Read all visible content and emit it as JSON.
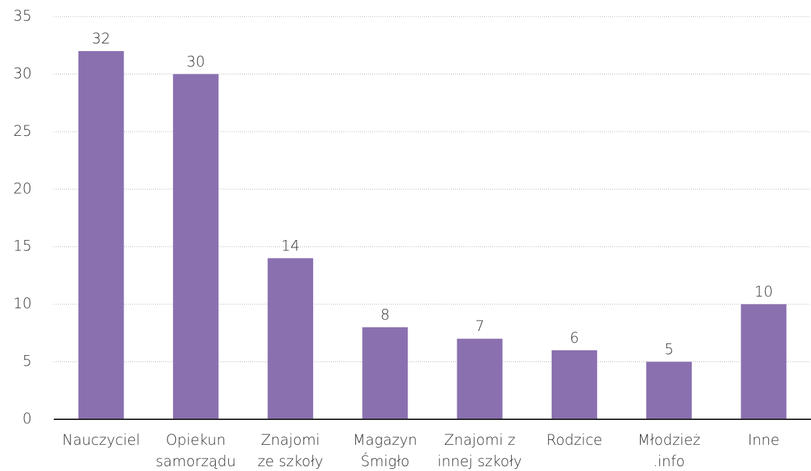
{
  "chart_data": {
    "type": "bar",
    "categories": [
      [
        "Nauczyciel"
      ],
      [
        "Opiekun",
        "samorządu"
      ],
      [
        "Znajomi",
        "ze szkoły"
      ],
      [
        "Magazyn",
        "Śmigło"
      ],
      [
        "Znajomi z",
        "innej szkoły"
      ],
      [
        "Rodzice"
      ],
      [
        "Młodzież",
        ".info"
      ],
      [
        "Inne"
      ]
    ],
    "values": [
      32,
      30,
      14,
      8,
      7,
      6,
      5,
      10
    ],
    "color": "#8b70b0",
    "ylim": [
      0,
      35
    ],
    "yticks": [
      0,
      5,
      10,
      15,
      20,
      25,
      30,
      35
    ],
    "grid": true
  }
}
